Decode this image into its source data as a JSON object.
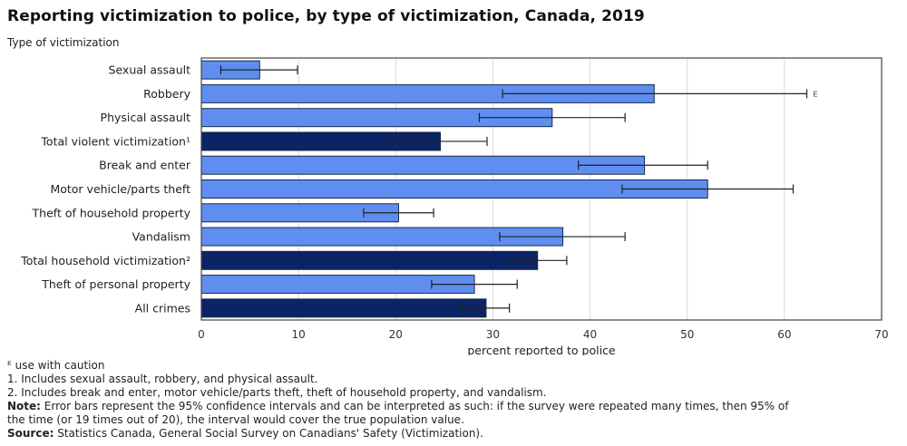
{
  "chart_data": {
    "type": "bar",
    "orientation": "horizontal",
    "title": "Reporting victimization to police, by type of victimization, Canada, 2019",
    "ylabel": "Type of victimization",
    "xlabel": "percent reported to police",
    "xlim": [
      0,
      70
    ],
    "xticks": [
      0,
      10,
      20,
      30,
      40,
      50,
      60,
      70
    ],
    "grid": true,
    "colors": {
      "category": "#5f8ef0",
      "total": "#0b2463",
      "outline": "#1a2a4a",
      "errorbar": "#222222",
      "grid": "#d9d9d9"
    },
    "categories": [
      {
        "label": "Sexual assault",
        "value": 6.0,
        "ci_low": 2.0,
        "ci_high": 9.9,
        "kind": "category",
        "flag": ""
      },
      {
        "label": "Robbery",
        "value": 46.6,
        "ci_low": 31.0,
        "ci_high": 62.3,
        "kind": "category",
        "flag": "E"
      },
      {
        "label": "Physical assault",
        "value": 36.1,
        "ci_low": 28.6,
        "ci_high": 43.6,
        "kind": "category",
        "flag": ""
      },
      {
        "label": "Total violent victimization¹",
        "value": 24.6,
        "ci_low": 19.7,
        "ci_high": 29.4,
        "kind": "total",
        "flag": ""
      },
      {
        "label": "Break and enter",
        "value": 45.6,
        "ci_low": 38.8,
        "ci_high": 52.1,
        "kind": "category",
        "flag": ""
      },
      {
        "label": "Motor vehicle/parts theft",
        "value": 52.1,
        "ci_low": 43.3,
        "ci_high": 60.9,
        "kind": "category",
        "flag": ""
      },
      {
        "label": "Theft of household property",
        "value": 20.3,
        "ci_low": 16.7,
        "ci_high": 23.9,
        "kind": "category",
        "flag": ""
      },
      {
        "label": "Vandalism",
        "value": 37.2,
        "ci_low": 30.7,
        "ci_high": 43.6,
        "kind": "category",
        "flag": ""
      },
      {
        "label": "Total household victimization²",
        "value": 34.6,
        "ci_low": 31.7,
        "ci_high": 37.6,
        "kind": "total",
        "flag": ""
      },
      {
        "label": "Theft of personal property",
        "value": 28.1,
        "ci_low": 23.7,
        "ci_high": 32.5,
        "kind": "category",
        "flag": ""
      },
      {
        "label": "All crimes",
        "value": 29.3,
        "ci_low": 26.8,
        "ci_high": 31.7,
        "kind": "total",
        "flag": ""
      }
    ]
  },
  "notes": {
    "caution": "ᴱ use with caution",
    "fn1": "1. Includes sexual assault, robbery, and physical assault.",
    "fn2": "2. Includes break and enter, motor vehicle/parts theft, theft of household property, and vandalism.",
    "note_label": "Note:",
    "note_text": " Error bars represent the 95% confidence intervals and can be interpreted as such: if the survey were repeated many times, then 95% of",
    "note_text2": "the time (or 19 times out of 20), the interval would cover the true population value.",
    "source_label": "Source:",
    "source_text": " Statistics Canada, General Social Survey on Canadians' Safety (Victimization)."
  }
}
